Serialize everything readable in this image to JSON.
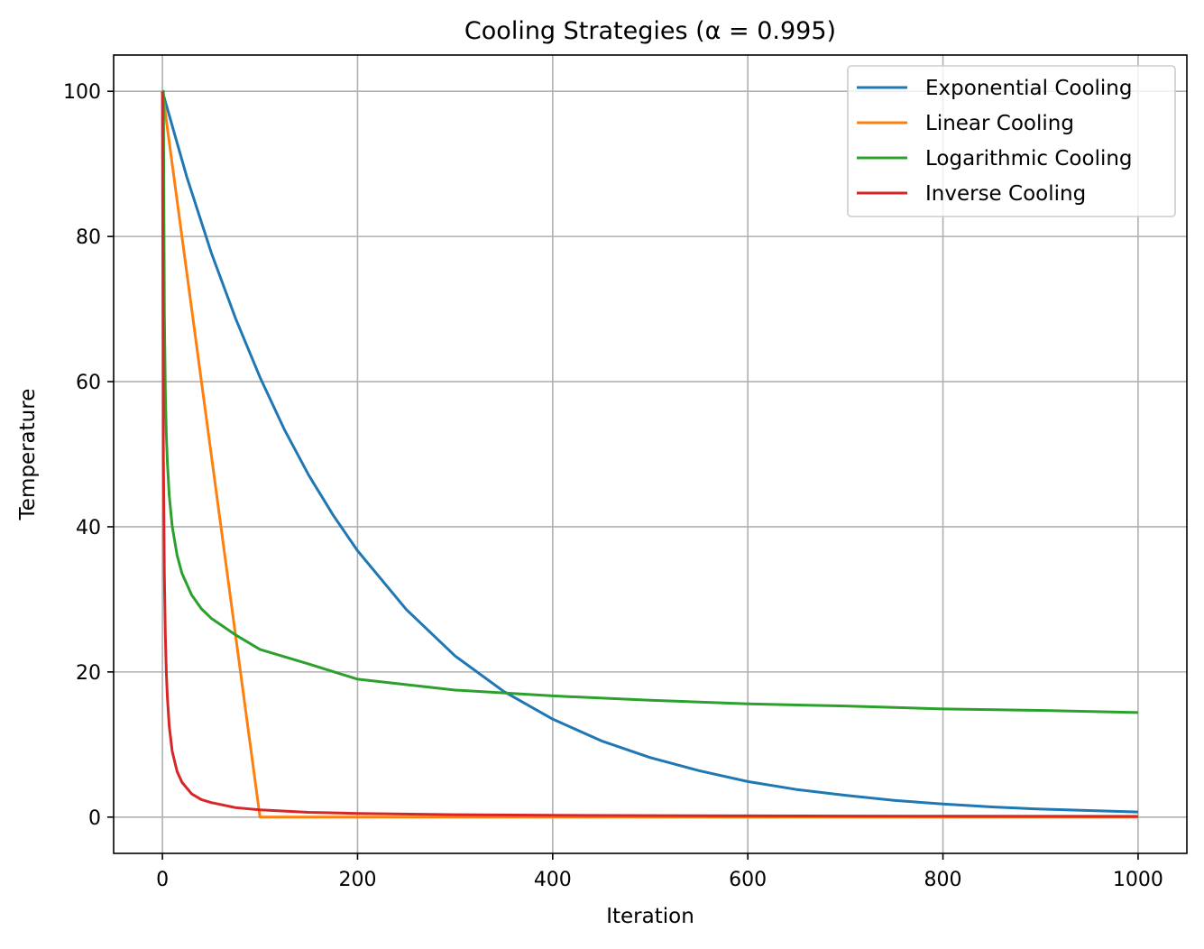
{
  "chart_data": {
    "type": "line",
    "title": "Cooling Strategies (α = 0.995)",
    "xlabel": "Iteration",
    "ylabel": "Temperature",
    "xlim": [
      -50,
      1050
    ],
    "ylim": [
      -5,
      105
    ],
    "xticks": [
      0,
      200,
      400,
      600,
      800,
      1000
    ],
    "yticks": [
      0,
      20,
      40,
      60,
      80,
      100
    ],
    "grid": true,
    "legend_position": "top-right",
    "series": [
      {
        "name": "Exponential Cooling",
        "color": "#1f77b4",
        "x": [
          0,
          25,
          50,
          75,
          100,
          125,
          150,
          175,
          200,
          250,
          300,
          350,
          400,
          450,
          500,
          550,
          600,
          650,
          700,
          750,
          800,
          850,
          900,
          950,
          1000
        ],
        "y": [
          100,
          88.2,
          77.8,
          68.7,
          60.6,
          53.4,
          47.1,
          41.6,
          36.7,
          28.6,
          22.2,
          17.3,
          13.5,
          10.5,
          8.2,
          6.4,
          4.9,
          3.8,
          3.0,
          2.3,
          1.8,
          1.4,
          1.1,
          0.9,
          0.7
        ]
      },
      {
        "name": "Linear Cooling",
        "color": "#ff7f0e",
        "x": [
          0,
          100,
          1000
        ],
        "y": [
          100,
          0,
          0
        ]
      },
      {
        "name": "Logarithmic Cooling",
        "color": "#2ca02c",
        "x": [
          0,
          1,
          2,
          3,
          4,
          5,
          7,
          10,
          15,
          20,
          30,
          40,
          50,
          75,
          100,
          150,
          200,
          300,
          400,
          500,
          600,
          700,
          800,
          900,
          1000
        ],
        "y": [
          100,
          100,
          69.3,
          58.5,
          52.8,
          49.1,
          44.3,
          40.1,
          36.1,
          33.6,
          30.6,
          28.7,
          27.4,
          25.1,
          23.1,
          21.1,
          19.0,
          17.5,
          16.7,
          16.1,
          15.6,
          15.3,
          14.9,
          14.7,
          14.4
        ]
      },
      {
        "name": "Inverse Cooling",
        "color": "#d62728",
        "x": [
          0,
          1,
          2,
          3,
          4,
          5,
          7,
          10,
          15,
          20,
          30,
          40,
          50,
          75,
          100,
          150,
          200,
          300,
          400,
          500,
          600,
          700,
          800,
          900,
          1000
        ],
        "y": [
          100,
          50,
          33.3,
          25,
          20,
          16.7,
          12.5,
          9.1,
          6.3,
          4.8,
          3.2,
          2.4,
          2.0,
          1.3,
          1.0,
          0.66,
          0.5,
          0.33,
          0.25,
          0.2,
          0.17,
          0.14,
          0.12,
          0.11,
          0.1
        ]
      }
    ]
  }
}
